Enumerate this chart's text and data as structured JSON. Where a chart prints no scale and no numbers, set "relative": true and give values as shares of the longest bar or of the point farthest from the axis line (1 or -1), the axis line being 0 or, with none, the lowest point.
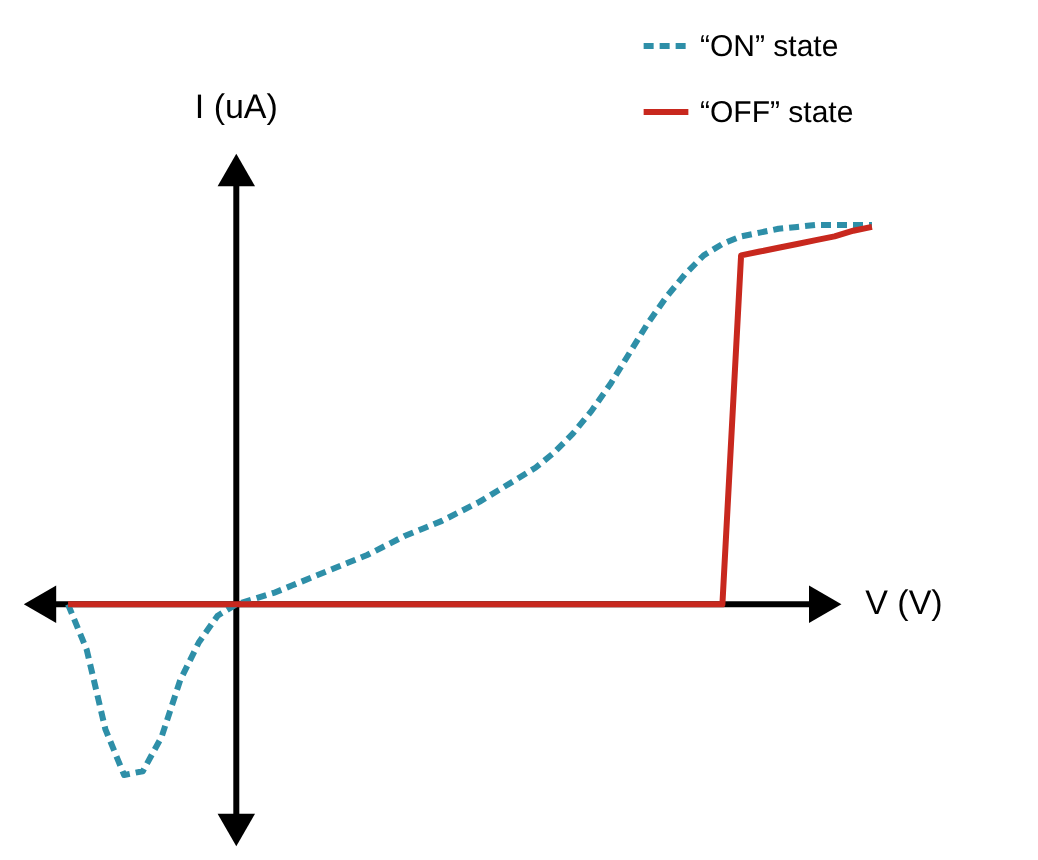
{
  "chart_data": {
    "type": "line",
    "relative": true,
    "xlabel": "V (V)",
    "ylabel": "I (uA)",
    "tick_labels": false,
    "grid": false,
    "legend": "top right",
    "categories": [
      null,
      null,
      null,
      null,
      null,
      null,
      null,
      null,
      null,
      null,
      null,
      null,
      null,
      null,
      null,
      null,
      null,
      null,
      null,
      null,
      null,
      null,
      null,
      null,
      null,
      null,
      null,
      null,
      null,
      null,
      null,
      null,
      null,
      null,
      null,
      null,
      null,
      null,
      null,
      null,
      null,
      null,
      null,
      null
    ],
    "series": [
      {
        "name": "“ON” state",
        "color": "#2e8fa8",
        "line_style": "dashed",
        "values": [
          0,
          -0.12,
          -0.33,
          -0.45,
          -0.44,
          -0.35,
          -0.2,
          -0.1,
          -0.03,
          0,
          0.015,
          0.03,
          0.05,
          0.07,
          0.09,
          0.11,
          0.13,
          0.155,
          0.18,
          0.2,
          0.22,
          0.245,
          0.27,
          0.3,
          0.33,
          0.36,
          0.4,
          0.45,
          0.51,
          0.58,
          0.66,
          0.74,
          0.81,
          0.87,
          0.92,
          0.95,
          0.97,
          0.98,
          0.99,
          0.995,
          1.0,
          1.0,
          1.0,
          1.0
        ]
      },
      {
        "name": "“OFF” state",
        "color": "#c8281e",
        "line_style": "solid",
        "values": [
          0,
          0,
          0,
          0,
          0,
          0,
          0,
          0,
          0,
          0,
          0,
          0,
          0,
          0,
          0,
          0,
          0,
          0,
          0,
          0,
          0,
          0,
          0,
          0,
          0,
          0,
          0,
          0,
          0,
          0,
          0,
          0,
          0,
          0,
          0,
          0,
          0.92,
          0.93,
          0.94,
          0.95,
          0.96,
          0.97,
          0.985,
          0.995
        ]
      }
    ]
  }
}
